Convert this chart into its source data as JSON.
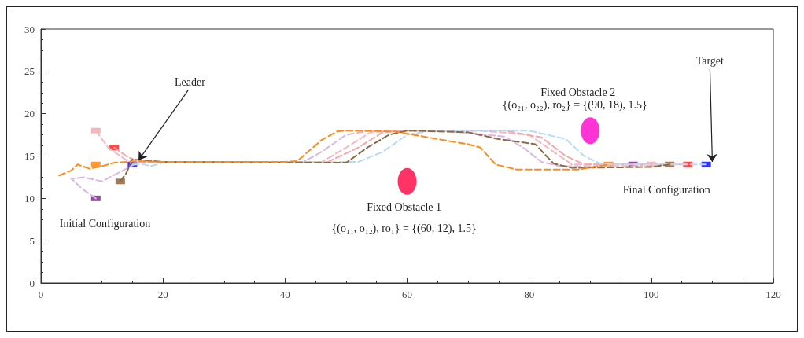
{
  "chart_data": {
    "type": "line",
    "line_style": "dashed",
    "grid": false,
    "xlim": [
      0,
      120
    ],
    "xticks": [
      0,
      20,
      40,
      60,
      80,
      100,
      120
    ],
    "ylim": [
      0,
      30
    ],
    "yticks": [
      0,
      5,
      10,
      15,
      20,
      25,
      30
    ],
    "annotations": [
      {
        "text": "Leader",
        "x": 16,
        "y": 14.5
      },
      {
        "text": "Target",
        "x": 110,
        "y": 14.3
      },
      "Fixed Obstacle 2",
      "{(o₂₁, o₂₂), ro₂} = {(90, 18), 1.5}",
      "Fixed Obstacle 1",
      "{(o₁₁, o₁₂), ro₁} = {(60, 12), 1.5}",
      "Initial Configuration",
      "Final Configuration"
    ],
    "series": [
      {
        "color": "#d9b8e6",
        "x": [
          9,
          7,
          5,
          7,
          10,
          14,
          16,
          43,
          46,
          50,
          54,
          66,
          76,
          79,
          82,
          85,
          97,
          99
        ],
        "values": [
          10,
          11,
          12.3,
          12.5,
          12,
          13.5,
          14.3,
          14.3,
          15.5,
          17.5,
          18,
          18,
          17.3,
          16,
          14.3,
          13.8,
          13.8,
          14
        ]
      },
      {
        "color": "#f7b8c4",
        "x": [
          9,
          11,
          14,
          16,
          46,
          50,
          54,
          58,
          72,
          80,
          84,
          87,
          100
        ],
        "values": [
          18,
          16,
          14.5,
          14.3,
          14.3,
          16,
          17.8,
          18,
          18,
          17.5,
          15.5,
          14,
          14
        ]
      },
      {
        "color": "#f5a8a8",
        "x": [
          12,
          14,
          16,
          47,
          52,
          56,
          60,
          76,
          82,
          86,
          89,
          106
        ],
        "values": [
          16,
          15,
          14.3,
          14.3,
          16,
          17.8,
          18,
          18,
          17.2,
          15,
          14,
          14
        ]
      },
      {
        "color": "#b8dcf5",
        "x": [
          15,
          17,
          18,
          20,
          52,
          56,
          60,
          64,
          80,
          86,
          89,
          92,
          109
        ],
        "values": [
          14,
          14,
          13.8,
          14.2,
          14.3,
          15.5,
          17.5,
          18,
          18,
          17,
          15,
          14,
          14
        ]
      },
      {
        "color": "#8b6a45",
        "x": [
          13,
          14,
          15,
          20,
          50,
          53.5,
          57,
          60,
          70,
          75,
          81,
          84,
          87,
          100,
          103
        ],
        "values": [
          12,
          13,
          14.6,
          14.3,
          14.2,
          16,
          17.5,
          18,
          17.8,
          17,
          16.4,
          14.1,
          13.6,
          13.7,
          14
        ]
      },
      {
        "color": "#ff8c1a",
        "x": [
          3,
          5,
          6,
          8,
          10,
          12,
          16,
          20,
          40,
          42,
          46,
          48.5,
          50,
          58,
          65,
          70,
          72,
          74.5,
          78,
          88,
          93
        ],
        "values": [
          12.7,
          13.3,
          14,
          13.5,
          13.8,
          14.2,
          14.4,
          14.3,
          14.3,
          14.4,
          16.9,
          17.9,
          18,
          17.9,
          17,
          16.4,
          16,
          14,
          13.4,
          13.4,
          14
        ]
      },
      {
        "type": "scatter",
        "marker": "square",
        "x": [
          9,
          12,
          9,
          15,
          13,
          9,
          93,
          97,
          100,
          103,
          106,
          109
        ],
        "values": [
          18,
          16,
          14,
          14,
          12,
          10,
          14,
          14,
          14,
          14,
          14,
          14
        ],
        "colors": [
          "#f4a0a8",
          "#ff1a1a",
          "#ff8000",
          "#0000ff",
          "#8b5a2b",
          "#7a1a8a",
          "#ff8000",
          "#7a1a8a",
          "#f4a0a8",
          "#8b5a2b",
          "#ff1a1a",
          "#0000ff"
        ]
      },
      {
        "type": "scatter",
        "marker": "circle",
        "x": [
          60,
          90
        ],
        "values": [
          12,
          18
        ],
        "colors": [
          "#ff0040",
          "#ff00cc"
        ]
      }
    ]
  }
}
